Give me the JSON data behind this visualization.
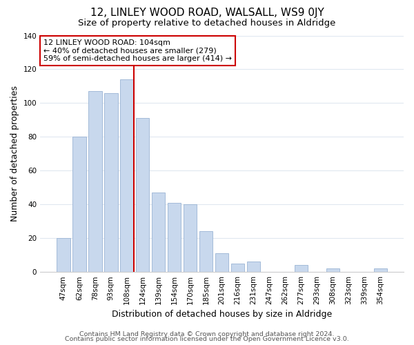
{
  "title": "12, LINLEY WOOD ROAD, WALSALL, WS9 0JY",
  "subtitle": "Size of property relative to detached houses in Aldridge",
  "xlabel": "Distribution of detached houses by size in Aldridge",
  "ylabel": "Number of detached properties",
  "categories": [
    "47sqm",
    "62sqm",
    "78sqm",
    "93sqm",
    "108sqm",
    "124sqm",
    "139sqm",
    "154sqm",
    "170sqm",
    "185sqm",
    "201sqm",
    "216sqm",
    "231sqm",
    "247sqm",
    "262sqm",
    "277sqm",
    "293sqm",
    "308sqm",
    "323sqm",
    "339sqm",
    "354sqm"
  ],
  "values": [
    20,
    80,
    107,
    106,
    114,
    91,
    47,
    41,
    40,
    24,
    11,
    5,
    6,
    0,
    0,
    4,
    0,
    2,
    0,
    0,
    2
  ],
  "bar_color": "#c8d8ed",
  "bar_edge_color": "#9ab4d4",
  "highlight_index": 4,
  "highlight_line_color": "#cc0000",
  "ylim": [
    0,
    140
  ],
  "yticks": [
    0,
    20,
    40,
    60,
    80,
    100,
    120,
    140
  ],
  "annotation_title": "12 LINLEY WOOD ROAD: 104sqm",
  "annotation_line1": "← 40% of detached houses are smaller (279)",
  "annotation_line2": "59% of semi-detached houses are larger (414) →",
  "annotation_box_color": "#ffffff",
  "annotation_box_edge": "#cc0000",
  "footer1": "Contains HM Land Registry data © Crown copyright and database right 2024.",
  "footer2": "Contains public sector information licensed under the Open Government Licence v3.0.",
  "background_color": "#ffffff",
  "grid_color": "#e0e8f0",
  "title_fontsize": 11,
  "subtitle_fontsize": 9.5,
  "axis_label_fontsize": 9,
  "tick_fontsize": 7.5,
  "annotation_fontsize": 8,
  "footer_fontsize": 6.8
}
